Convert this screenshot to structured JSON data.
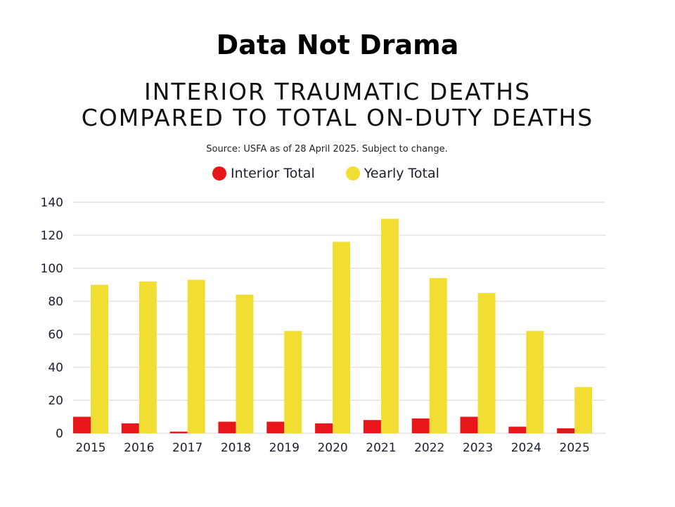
{
  "header": {
    "brand": "Data Not Drama",
    "title_line1": "INTERIOR TRAUMATIC DEATHS",
    "title_line2": "COMPARED TO TOTAL ON-DUTY DEATHS",
    "source": "Source: USFA as of 28 April 2025. Subject to change."
  },
  "legend": {
    "interior": "Interior Total",
    "yearly": "Yearly Total"
  },
  "colors": {
    "interior": "#e8151b",
    "yearly": "#f2dd32",
    "grid": "#d4d4d4",
    "axis_text": "#1a1f2e"
  },
  "chart_data": {
    "type": "bar",
    "categories": [
      "2015",
      "2016",
      "2017",
      "2018",
      "2019",
      "2020",
      "2021",
      "2022",
      "2023",
      "2024",
      "2025"
    ],
    "series": [
      {
        "name": "Interior Total",
        "values": [
          10,
          6,
          1,
          7,
          7,
          6,
          8,
          9,
          10,
          4,
          3
        ]
      },
      {
        "name": "Yearly Total",
        "values": [
          90,
          92,
          93,
          84,
          62,
          116,
          130,
          94,
          85,
          62,
          28
        ]
      }
    ],
    "ylim": [
      0,
      140
    ],
    "yticks": [
      "0",
      "20",
      "40",
      "60",
      "80",
      "100",
      "120",
      "140"
    ],
    "grid": true,
    "legend_position": "top"
  }
}
